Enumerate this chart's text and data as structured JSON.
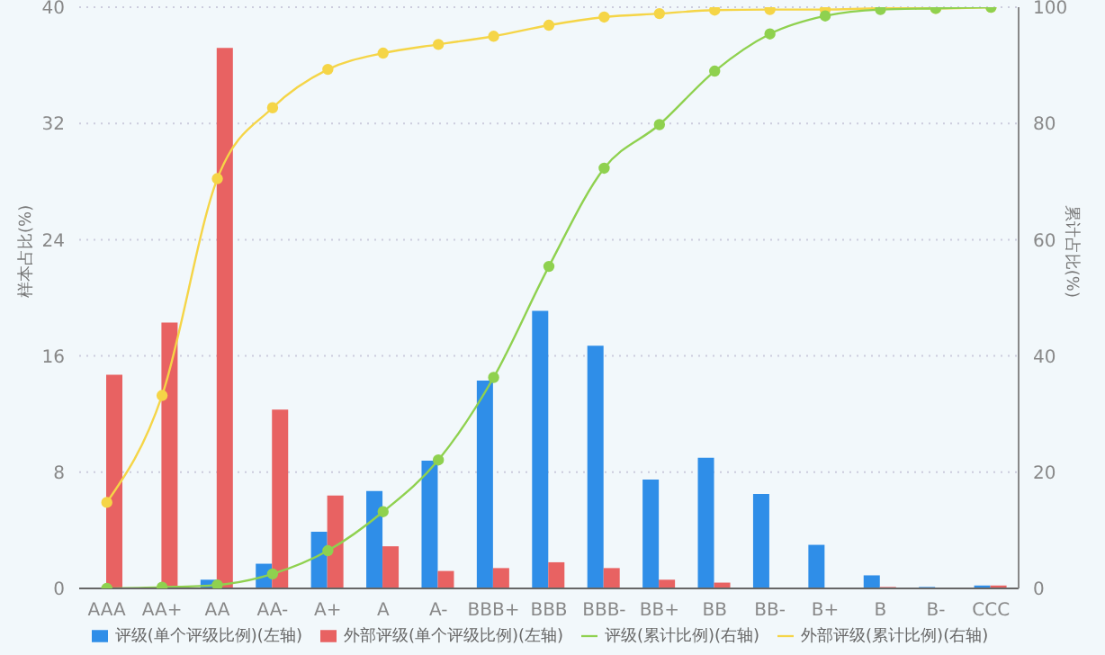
{
  "chart_data": {
    "type": "bar",
    "ylabel": "样本占比(%)",
    "y2label": "累计占比(%)",
    "categories": [
      "AAA",
      "AA+",
      "AA",
      "AA-",
      "A+",
      "A",
      "A-",
      "BBB+",
      "BBB",
      "BBB-",
      "BB+",
      "BB",
      "BB-",
      "B+",
      "B",
      "B-",
      "CCC"
    ],
    "series": [
      {
        "name": "评级(单个评级比例)(左轴)",
        "color": "#2f8ee8",
        "values": [
          0,
          0,
          0.6,
          1.7,
          3.9,
          6.7,
          8.8,
          14.3,
          19.1,
          16.7,
          7.5,
          9.0,
          6.5,
          3.0,
          0.9,
          0.1,
          0.2
        ]
      },
      {
        "name": "外部评级(单个评级比例)(左轴)",
        "color": "#e86262",
        "values": [
          14.7,
          18.3,
          37.2,
          12.3,
          6.4,
          2.9,
          1.2,
          1.4,
          1.8,
          1.4,
          0.6,
          0.4,
          0,
          0,
          0.1,
          0,
          0.2
        ]
      },
      {
        "name": "评级(累计比例)(右轴)",
        "type": "line",
        "axis": "y2",
        "color": "#8fd14f",
        "values": [
          0,
          0.2,
          0.6,
          2.5,
          6.5,
          13.2,
          22.1,
          36.3,
          55.4,
          72.3,
          79.8,
          89.0,
          95.4,
          98.5,
          99.6,
          99.8,
          100
        ]
      },
      {
        "name": "外部评级(累计比例)(右轴)",
        "type": "line",
        "axis": "y2",
        "color": "#f5d547",
        "values": [
          14.8,
          33.2,
          70.5,
          82.7,
          89.3,
          92.1,
          93.6,
          95.0,
          96.9,
          98.3,
          98.9,
          99.5,
          99.6,
          99.6,
          99.8,
          99.8,
          100
        ]
      }
    ],
    "ylim": [
      0,
      40
    ],
    "yticks": [
      0,
      8,
      16,
      24,
      32,
      40
    ],
    "y2lim": [
      0,
      100
    ],
    "y2ticks": [
      0,
      20,
      40,
      60,
      80,
      100
    ],
    "grid": "y",
    "legend": "bottom",
    "marker": "circle",
    "line_style": "solid"
  }
}
